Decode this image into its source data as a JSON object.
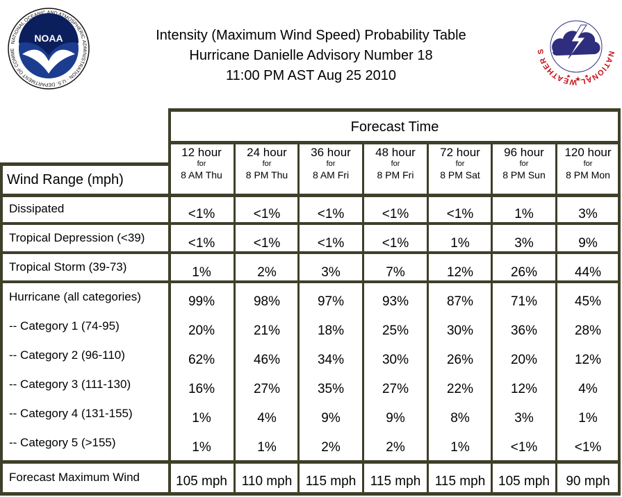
{
  "header": {
    "title_line1": "Intensity (Maximum Wind Speed) Probability Table",
    "title_line2": "Hurricane Danielle Advisory Number 18",
    "title_line3": "11:00 PM AST Aug 25 2010",
    "noaa_logo_text": "NOAA",
    "noaa_ring_text": "NATIONAL OCEANIC AND ATMOSPHERIC ADMINISTRATION · U.S. DEPARTMENT OF COMMERCE",
    "nws_ring_text": "NATIONAL WEATHER SERVICE"
  },
  "table": {
    "forecast_time_label": "Forecast Time",
    "wind_range_label": "Wind Range (mph)",
    "columns": [
      {
        "hours": "12 hour",
        "for": "for",
        "when": "8 AM Thu"
      },
      {
        "hours": "24 hour",
        "for": "for",
        "when": "8 PM Thu"
      },
      {
        "hours": "36 hour",
        "for": "for",
        "when": "8 AM Fri"
      },
      {
        "hours": "48 hour",
        "for": "for",
        "when": "8 PM Fri"
      },
      {
        "hours": "72 hour",
        "for": "for",
        "when": "8 PM Sat"
      },
      {
        "hours": "96 hour",
        "for": "for",
        "when": "8 PM Sun"
      },
      {
        "hours": "120 hour",
        "for": "for",
        "when": "8 PM Mon"
      }
    ],
    "rows": [
      {
        "label": "Dissipated",
        "values": [
          "<1%",
          "<1%",
          "<1%",
          "<1%",
          "<1%",
          "1%",
          "3%"
        ]
      },
      {
        "label": "Tropical Depression (<39)",
        "values": [
          "<1%",
          "<1%",
          "<1%",
          "<1%",
          "1%",
          "3%",
          "9%"
        ]
      },
      {
        "label": "Tropical Storm (39-73)",
        "values": [
          "1%",
          "2%",
          "3%",
          "7%",
          "12%",
          "26%",
          "44%"
        ]
      },
      {
        "label": "Hurricane (all categories)",
        "values": [
          "99%",
          "98%",
          "97%",
          "93%",
          "87%",
          "71%",
          "45%"
        ]
      },
      {
        "label": "-- Category 1 (74-95)",
        "values": [
          "20%",
          "21%",
          "18%",
          "25%",
          "30%",
          "36%",
          "28%"
        ]
      },
      {
        "label": "-- Category 2 (96-110)",
        "values": [
          "62%",
          "46%",
          "34%",
          "30%",
          "26%",
          "20%",
          "12%"
        ]
      },
      {
        "label": "-- Category 3 (111-130)",
        "values": [
          "16%",
          "27%",
          "35%",
          "27%",
          "22%",
          "12%",
          "4%"
        ]
      },
      {
        "label": "-- Category 4 (131-155)",
        "values": [
          "1%",
          "4%",
          "9%",
          "9%",
          "8%",
          "3%",
          "1%"
        ]
      },
      {
        "label": "-- Category 5 (>155)",
        "values": [
          "1%",
          "1%",
          "2%",
          "2%",
          "1%",
          "<1%",
          "<1%"
        ]
      }
    ],
    "max_wind": {
      "label": "Forecast Maximum Wind",
      "values": [
        "105 mph",
        "110 mph",
        "115 mph",
        "115 mph",
        "115 mph",
        "105 mph",
        "90 mph"
      ]
    }
  },
  "colors": {
    "border": "#3f3f2a",
    "noaa_blue": "#1c3d8f",
    "noaa_dark": "#0b1f5c",
    "nws_red": "#c4121b",
    "nws_cloud": "#2f2d7d"
  }
}
